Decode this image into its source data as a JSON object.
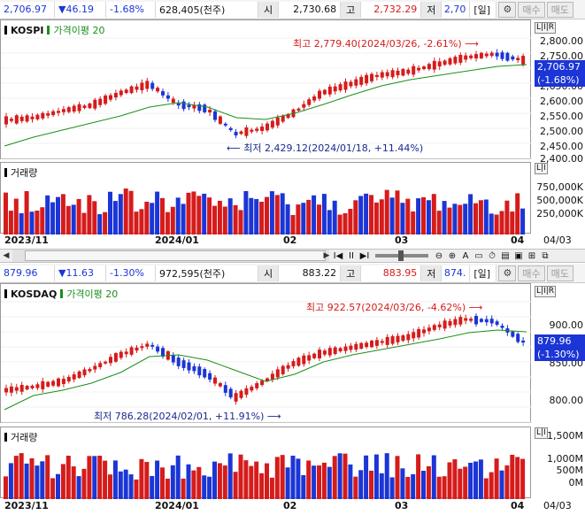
{
  "kospi": {
    "quote": {
      "price": "2,706.97",
      "change": "▼46.19",
      "change_pct": "-1.68%",
      "volume": "628,405(천주)",
      "open_label": "시",
      "open": "2,730.68",
      "high_label": "고",
      "high": "2,732.29",
      "low_label": "저",
      "low": "2,70",
      "period": "[일]",
      "btn_buy": "매수",
      "btn_sell": "매도"
    },
    "name": "KOSPI",
    "ma_label": "가격이평 20",
    "annot_high": "최고 2,779.40(2024/03/26, -2.61%)",
    "annot_low": "최저 2,429.12(2024/01/18, +11.44%)",
    "last_price": "2,706.97",
    "last_pct": "(-1.68%)",
    "price_ticks": [
      "2,800.00",
      "2,750.00",
      "2,700.00",
      "2,650.00",
      "2,600.00",
      "2,550.00",
      "2,500.00",
      "2,450.00",
      "2,400.00"
    ],
    "volume_label": "거래량",
    "volume_ticks": [
      "750,000K",
      "500,000K",
      "250,000K"
    ],
    "time_labels": [
      "2023/11",
      "2024/01",
      "02",
      "03",
      "04",
      "04/03"
    ],
    "axis_btns": [
      "L",
      "I",
      "R"
    ]
  },
  "kosdaq": {
    "quote": {
      "price": "879.96",
      "change": "▼11.63",
      "change_pct": "-1.30%",
      "volume": "972,595(천주)",
      "open_label": "시",
      "open": "883.22",
      "high_label": "고",
      "high": "883.95",
      "low_label": "저",
      "low": "874.",
      "period": "[일]",
      "btn_buy": "매수",
      "btn_sell": "매도"
    },
    "name": "KOSDAQ",
    "ma_label": "가격이평 20",
    "annot_high": "최고 922.57(2024/03/26, -4.62%)",
    "annot_low": "최저 786.28(2024/02/01, +11.91%)",
    "last_price": "879.96",
    "last_pct": "(-1.30%)",
    "price_ticks": [
      "900.00",
      "850.00",
      "800.00"
    ],
    "volume_label": "거래량",
    "volume_ticks": [
      "1,500M",
      "1,000M",
      "500M",
      "0M"
    ],
    "time_labels": [
      "2023/11",
      "2024/01",
      "02",
      "03",
      "04",
      "04/03"
    ],
    "axis_btns": [
      "L",
      "I",
      "R"
    ]
  },
  "colors": {
    "up": "#d61b1b",
    "down": "#1b35d6",
    "ma": "#1a8f1a"
  },
  "icons": [
    "gear-icon",
    "first-icon",
    "prev-icon",
    "pause-icon",
    "next-icon",
    "last-icon",
    "zoom-out-icon",
    "zoom-in-icon",
    "text-icon",
    "rect-icon",
    "clock-icon",
    "chart-icon",
    "window-icon",
    "grid-icon",
    "dual-icon"
  ],
  "scroll_symbols": {
    "left": "◀",
    "first": "I◀",
    "pause": "II",
    "next": "▶I",
    "right": "▶",
    "zoom_out": "⊖",
    "zoom_in": "⊕",
    "text": "A",
    "rect": "▭",
    "clock": "⏱",
    "chart": "▤",
    "window": "▣",
    "grid": "⊞",
    "dual": "⧉"
  }
}
